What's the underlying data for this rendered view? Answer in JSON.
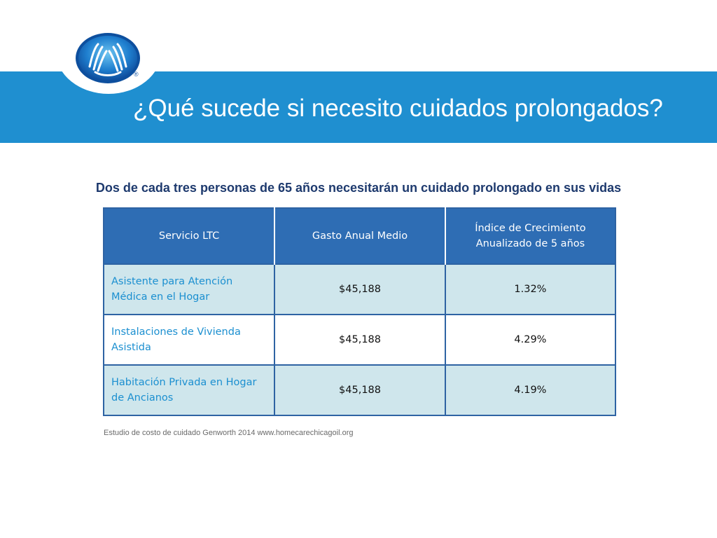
{
  "header": {
    "title": "¿Qué sucede si necesito cuidados prolongados?",
    "logo": {
      "icon": "allstate-hands-logo-icon",
      "registered_mark": "®"
    }
  },
  "subtitle": "Dos de cada tres personas de 65 años necesitarán un cuidado prolongado en sus vidas",
  "table": {
    "columns": [
      "Servicio LTC",
      "Gasto Anual Medio",
      "Índice de Crecimiento Anualizado de 5 años"
    ],
    "rows": [
      {
        "service": "Asistente para Atención Médica en el Hogar",
        "annual_cost": "$45,188",
        "growth_rate": "1.32%"
      },
      {
        "service": "Instalaciones de Vivienda Asistida",
        "annual_cost": "$45,188",
        "growth_rate": "4.29%"
      },
      {
        "service": "Habitación Privada en Hogar de Ancianos",
        "annual_cost": "$45,188",
        "growth_rate": "4.19%"
      }
    ]
  },
  "source": "Estudio de costo de cuidado Genworth 2014 www.homecarechicagoil.org",
  "colors": {
    "header_band": "#1f8fd0",
    "table_header": "#2e6db4",
    "table_border": "#2e63a3",
    "row_shade": "#cfe6ec",
    "service_text": "#1b8fd0",
    "subtitle_text": "#1e3a6e"
  }
}
